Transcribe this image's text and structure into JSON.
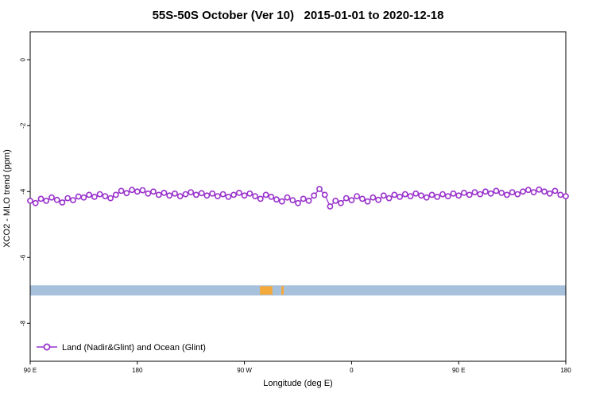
{
  "title": "55S-50S October (Ver 10)   2015-01-01 to 2020-12-18",
  "chart_data": {
    "type": "line",
    "title": "55S-50S October (Ver 10)   2015-01-01 to 2020-12-18",
    "xlabel": "Longitude (deg E)",
    "ylabel": "XCO2 - MLO trend (ppm)",
    "xlim": [
      90,
      540
    ],
    "ylim": [
      -9.15,
      0.85
    ],
    "y_ticks": [
      0,
      -2,
      -4,
      -6,
      -8
    ],
    "x_ticks": [
      {
        "value": 90,
        "label": "90 E"
      },
      {
        "value": 180,
        "label": "180"
      },
      {
        "value": 270,
        "label": "90 W"
      },
      {
        "value": 360,
        "label": "0"
      },
      {
        "value": 450,
        "label": "90 E"
      },
      {
        "value": 540,
        "label": "180"
      }
    ],
    "grid": false,
    "legend_position": "bottom-left",
    "series": [
      {
        "name": "Land (Nadir&Glint) and Ocean (Glint)",
        "color": "#9932CC",
        "marker": "open-circle",
        "x": [
          90,
          94.5,
          99,
          103.5,
          108,
          112.5,
          117,
          121.5,
          126,
          130.5,
          135,
          139.5,
          144,
          148.5,
          153,
          157.5,
          162,
          166.5,
          171,
          175.5,
          180,
          184.5,
          189,
          193.5,
          198,
          202.5,
          207,
          211.5,
          216,
          220.5,
          225,
          229.5,
          234,
          238.5,
          243,
          247.5,
          252,
          256.5,
          261,
          265.5,
          270,
          274.5,
          279,
          283.5,
          288,
          292.5,
          297,
          301.5,
          306,
          310.5,
          315,
          319.5,
          324,
          328.5,
          333,
          337.5,
          342,
          346.5,
          351,
          355.5,
          360,
          364.5,
          369,
          373.5,
          378,
          382.5,
          387,
          391.5,
          396,
          400.5,
          405,
          409.5,
          414,
          418.5,
          423,
          427.5,
          432,
          436.5,
          441,
          445.5,
          450,
          454.5,
          459,
          463.5,
          468,
          472.5,
          477,
          481.5,
          486,
          490.5,
          495,
          499.5,
          504,
          508.5,
          513,
          517.5,
          522,
          526.5,
          531,
          535.5,
          540
        ],
        "y": [
          -4.28,
          -4.35,
          -4.22,
          -4.28,
          -4.18,
          -4.25,
          -4.33,
          -4.2,
          -4.26,
          -4.15,
          -4.18,
          -4.1,
          -4.16,
          -4.08,
          -4.14,
          -4.2,
          -4.1,
          -3.98,
          -4.05,
          -3.95,
          -4.0,
          -3.96,
          -4.06,
          -4.0,
          -4.1,
          -4.04,
          -4.12,
          -4.06,
          -4.14,
          -4.08,
          -4.02,
          -4.1,
          -4.05,
          -4.12,
          -4.06,
          -4.14,
          -4.08,
          -4.16,
          -4.1,
          -4.04,
          -4.12,
          -4.06,
          -4.14,
          -4.22,
          -4.1,
          -4.16,
          -4.24,
          -4.3,
          -4.18,
          -4.26,
          -4.35,
          -4.22,
          -4.28,
          -4.12,
          -3.92,
          -4.1,
          -4.45,
          -4.28,
          -4.35,
          -4.2,
          -4.26,
          -4.14,
          -4.22,
          -4.3,
          -4.18,
          -4.25,
          -4.12,
          -4.2,
          -4.1,
          -4.16,
          -4.08,
          -4.14,
          -4.06,
          -4.12,
          -4.18,
          -4.1,
          -4.16,
          -4.08,
          -4.14,
          -4.06,
          -4.12,
          -4.04,
          -4.1,
          -4.02,
          -4.08,
          -4.0,
          -4.06,
          -3.98,
          -4.04,
          -4.1,
          -4.02,
          -4.08,
          -4.0,
          -3.95,
          -4.02,
          -3.94,
          -4.0,
          -4.06,
          -3.98,
          -4.1,
          -4.14
        ]
      }
    ],
    "map_strip": {
      "description": "latitude-band map strip: ocean band with land segments",
      "ocean_color": "#a7c0dc",
      "land_color": "#f4a93b",
      "y_top": -6.845,
      "y_bottom": -7.155,
      "land_segments_lon": [
        [
          283,
          293.5
        ],
        [
          301,
          303
        ]
      ]
    },
    "legend": {
      "label": "Land (Nadir&Glint) and Ocean (Glint)"
    }
  }
}
